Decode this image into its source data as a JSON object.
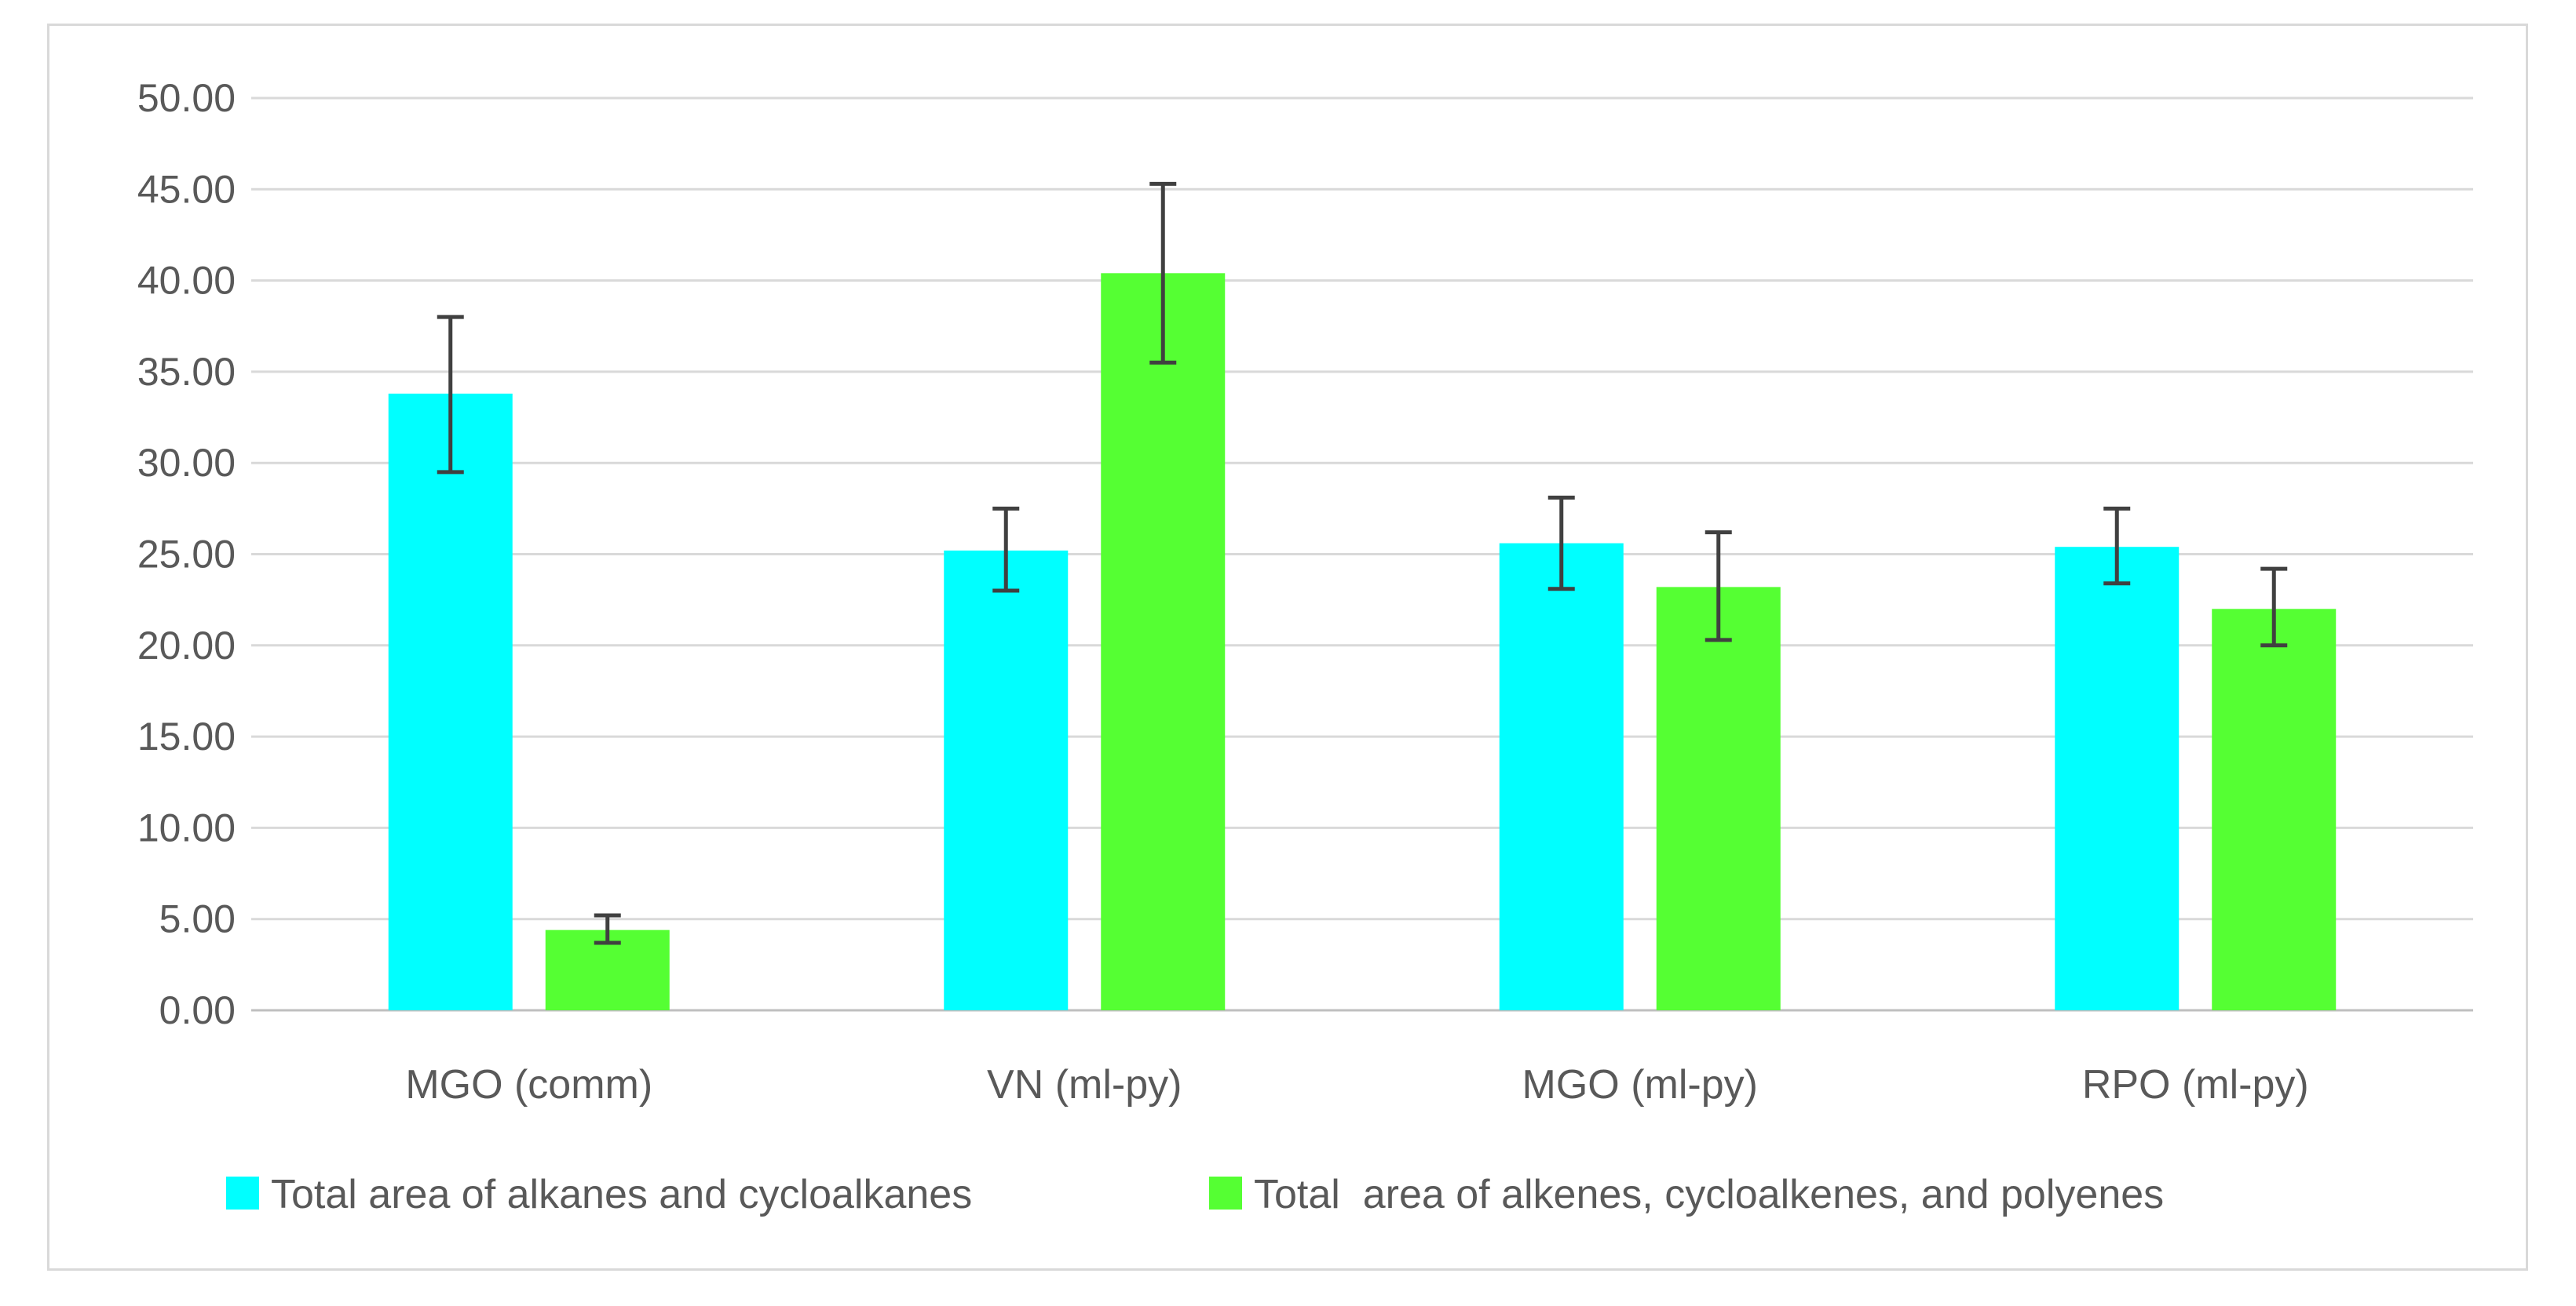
{
  "chart_data": {
    "type": "bar",
    "title": "",
    "xlabel": "",
    "ylabel": "",
    "ylim": [
      0,
      50
    ],
    "y_ticks": [
      "0.00",
      "5.00",
      "10.00",
      "15.00",
      "20.00",
      "25.00",
      "30.00",
      "35.00",
      "40.00",
      "45.00",
      "50.00"
    ],
    "grid": true,
    "legend_position": "bottom",
    "categories": [
      "MGO (comm)",
      "VN (ml-py)",
      "MGO (ml-py)",
      "RPO (ml-py)"
    ],
    "series": [
      {
        "name": "Total area of alkanes and cycloalkanes",
        "color": "#00ffff",
        "values": [
          33.8,
          25.2,
          25.6,
          25.4
        ],
        "error_low": [
          29.5,
          23.0,
          23.1,
          23.4
        ],
        "error_high": [
          38.0,
          27.5,
          28.1,
          27.5
        ]
      },
      {
        "name": "Total  area of alkenes, cycloalkenes, and polyenes",
        "color": "#55ff33",
        "values": [
          4.4,
          40.4,
          23.2,
          22.0
        ],
        "error_low": [
          3.7,
          35.5,
          20.3,
          20.0
        ],
        "error_high": [
          5.2,
          45.3,
          26.2,
          24.2
        ]
      }
    ]
  }
}
